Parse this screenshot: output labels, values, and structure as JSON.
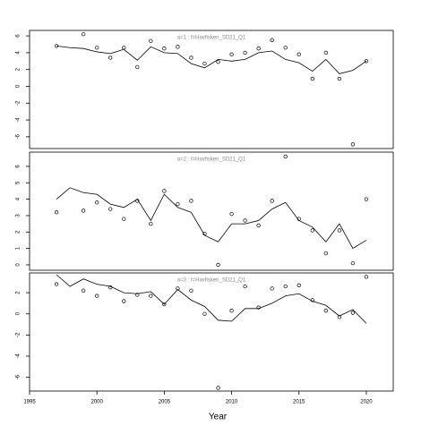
{
  "chart_data": [
    {
      "type": "line",
      "strip": "a=1 : f=Havfisken_SD21_Q1",
      "xlim": [
        1995,
        2022
      ],
      "ylim": [
        -7.4,
        6.65
      ],
      "yticks": [
        -6,
        -4,
        -2,
        0,
        2,
        4,
        6
      ],
      "series": [
        {
          "mode": "points",
          "color": "#000000",
          "x": [
            1997,
            1999,
            2000,
            2001,
            2002,
            2003,
            2004,
            2005,
            2006,
            2007,
            2008,
            2009,
            2010,
            2011,
            2012,
            2013,
            2014,
            2015,
            2016,
            2017,
            2018,
            2019,
            2020
          ],
          "values": [
            4.8,
            6.2,
            4.6,
            3.4,
            4.6,
            2.3,
            5.4,
            4.5,
            4.7,
            3.4,
            2.7,
            2.9,
            3.8,
            4.0,
            4.5,
            5.5,
            4.6,
            3.8,
            0.9,
            4.0,
            0.9,
            -6.9,
            3.0
          ]
        },
        {
          "mode": "line",
          "color": "#000000",
          "x": [
            1997,
            1998,
            1999,
            2000,
            2001,
            2002,
            2003,
            2004,
            2005,
            2006,
            2007,
            2008,
            2009,
            2010,
            2011,
            2012,
            2013,
            2014,
            2015,
            2016,
            2017,
            2018,
            2019,
            2020
          ],
          "values": [
            4.8,
            4.6,
            4.5,
            4.1,
            3.9,
            4.4,
            3.1,
            4.7,
            4.0,
            3.9,
            2.7,
            2.2,
            3.2,
            3.0,
            3.2,
            4.0,
            4.2,
            3.2,
            2.8,
            1.8,
            3.2,
            1.5,
            1.9,
            3.0
          ]
        }
      ]
    },
    {
      "type": "line",
      "strip": "a=2 : f=Havfisken_SD21_Q1",
      "xlim": [
        1995,
        2022
      ],
      "ylim": [
        -0.33,
        6.87
      ],
      "yticks": [
        0,
        1,
        2,
        3,
        4,
        5,
        6
      ],
      "series": [
        {
          "mode": "points",
          "color": "#000000",
          "x": [
            1997,
            1999,
            2000,
            2001,
            2002,
            2003,
            2004,
            2005,
            2006,
            2007,
            2008,
            2009,
            2010,
            2011,
            2012,
            2013,
            2014,
            2015,
            2016,
            2017,
            2018,
            2019,
            2020
          ],
          "values": [
            3.2,
            3.3,
            3.8,
            3.4,
            2.8,
            3.9,
            2.5,
            4.5,
            3.7,
            3.9,
            1.9,
            0.0,
            3.1,
            2.7,
            2.4,
            3.9,
            6.6,
            2.8,
            2.1,
            0.7,
            2.1,
            0.1,
            4.0
          ]
        },
        {
          "mode": "line",
          "color": "#000000",
          "x": [
            1997,
            1998,
            1999,
            2000,
            2001,
            2002,
            2003,
            2004,
            2005,
            2006,
            2007,
            2008,
            2009,
            2010,
            2011,
            2012,
            2013,
            2014,
            2015,
            2016,
            2017,
            2018,
            2019,
            2020
          ],
          "values": [
            4.0,
            4.7,
            4.4,
            4.3,
            3.7,
            3.5,
            4.0,
            2.7,
            4.3,
            3.5,
            3.2,
            1.8,
            1.4,
            2.5,
            2.5,
            2.7,
            3.4,
            3.8,
            2.7,
            2.3,
            1.4,
            2.5,
            1.0,
            1.5
          ]
        }
      ]
    },
    {
      "type": "line",
      "strip": "a=3 : f=Havfisken_SD21_Q1",
      "xlim": [
        1995,
        2022
      ],
      "ylim": [
        -7.3,
        3.87
      ],
      "yticks": [
        -6,
        -4,
        -2,
        0,
        2
      ],
      "xticks": [
        1995,
        2000,
        2005,
        2010,
        2015,
        2020
      ],
      "xlabel": "Year",
      "series": [
        {
          "mode": "points",
          "color": "#000000",
          "x": [
            1997,
            1999,
            2000,
            2001,
            2002,
            2003,
            2004,
            2005,
            2006,
            2007,
            2008,
            2009,
            2010,
            2011,
            2012,
            2013,
            2014,
            2015,
            2016,
            2017,
            2018,
            2019,
            2020
          ],
          "values": [
            2.8,
            2.2,
            1.7,
            2.5,
            1.2,
            1.8,
            1.7,
            0.9,
            2.4,
            2.2,
            0.0,
            -7.0,
            0.3,
            2.6,
            0.6,
            2.4,
            2.6,
            2.7,
            1.3,
            0.3,
            -0.3,
            0.1,
            3.5
          ]
        },
        {
          "mode": "line",
          "color": "#000000",
          "x": [
            1997,
            1998,
            1999,
            2000,
            2001,
            2002,
            2003,
            2004,
            2005,
            2006,
            2007,
            2008,
            2009,
            2010,
            2011,
            2012,
            2013,
            2014,
            2015,
            2016,
            2017,
            2018,
            2019,
            2020
          ],
          "values": [
            3.7,
            2.6,
            3.3,
            2.8,
            2.6,
            2.0,
            1.9,
            2.1,
            0.9,
            2.3,
            1.3,
            0.7,
            -0.6,
            -0.7,
            0.5,
            0.5,
            1.0,
            1.7,
            1.9,
            1.2,
            0.8,
            -0.2,
            0.4,
            -0.9
          ]
        }
      ]
    }
  ]
}
